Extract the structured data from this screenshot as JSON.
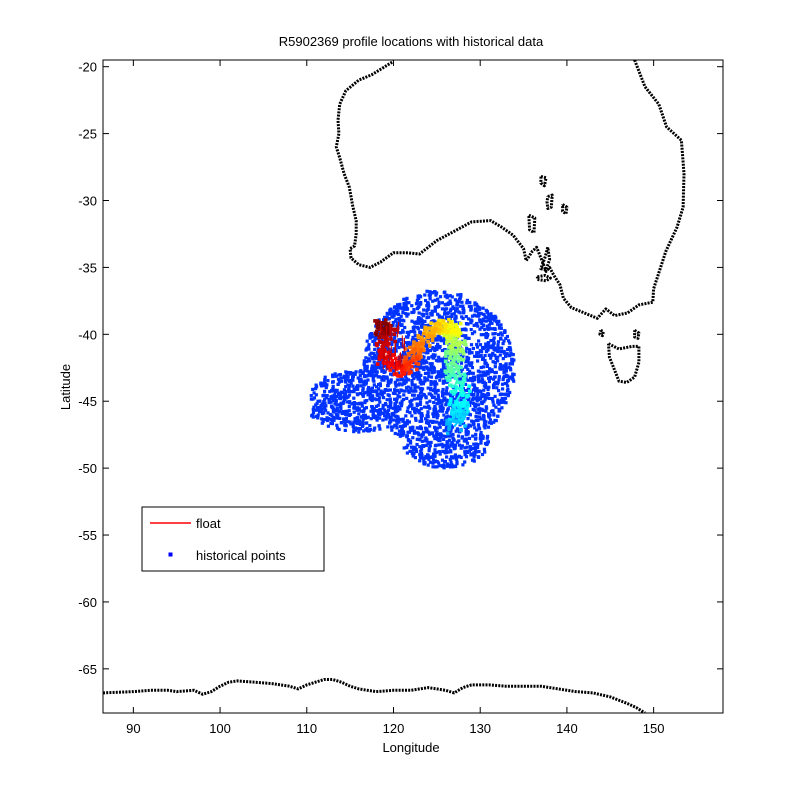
{
  "chart_data": {
    "type": "scatter",
    "title": "R5902369 profile locations with historical data",
    "xlabel": "Longitude",
    "ylabel": "Latitude",
    "xlim": [
      86.5,
      158
    ],
    "ylim": [
      -68.3,
      -19.5
    ],
    "xticks": [
      90,
      100,
      110,
      120,
      130,
      140,
      150
    ],
    "yticks": [
      -20,
      -25,
      -30,
      -35,
      -40,
      -45,
      -50,
      -55,
      -60,
      -65
    ],
    "grid": false,
    "legend_position": "lower-left",
    "legend": [
      {
        "label": "float",
        "color": "#ff0000",
        "marker": "line"
      },
      {
        "label": "historical points",
        "color": "#0000ff",
        "marker": "dot"
      }
    ],
    "series": [
      {
        "name": "historical points",
        "color": "#0033ff",
        "region": {
          "center": [
            124.5,
            -43.0
          ],
          "lon_range": [
            110.5,
            134.0
          ],
          "lat_range": [
            -50.0,
            -36.5
          ]
        }
      },
      {
        "name": "float",
        "color": "#ff0000",
        "colormap": "jet",
        "x": [
          127.0,
          127.6,
          127.2,
          127.8,
          127.3,
          127.9,
          127.1,
          127.4,
          126.9,
          126.6,
          126.9,
          127.2,
          127.5,
          127.0,
          126.8,
          126.5,
          127.0,
          126.7,
          126.3,
          125.7,
          125.1,
          124.6,
          124.1,
          123.6,
          123.0,
          122.6,
          122.3,
          122.1,
          121.9,
          121.2,
          120.4,
          119.7,
          119.1,
          118.7,
          118.9,
          119.4,
          119.0,
          118.6,
          118.9
        ],
        "y": [
          -46.9,
          -46.4,
          -45.9,
          -45.4,
          -44.9,
          -44.3,
          -43.8,
          -43.3,
          -42.8,
          -42.3,
          -41.8,
          -41.4,
          -41.0,
          -40.7,
          -40.4,
          -40.0,
          -39.7,
          -39.5,
          -39.4,
          -39.4,
          -39.5,
          -39.7,
          -40.0,
          -40.4,
          -40.8,
          -41.2,
          -41.6,
          -42.0,
          -42.3,
          -42.5,
          -42.6,
          -42.3,
          -41.8,
          -41.2,
          -40.6,
          -40.1,
          -39.7,
          -39.4,
          -39.6
        ]
      }
    ],
    "coastlines": [
      {
        "name": "australia",
        "points": [
          [
            147.8,
            -19.5
          ],
          [
            149.0,
            -21.5
          ],
          [
            150.6,
            -22.8
          ],
          [
            151.5,
            -24.5
          ],
          [
            153.2,
            -25.5
          ],
          [
            153.5,
            -28.0
          ],
          [
            153.4,
            -30.5
          ],
          [
            152.7,
            -32.0
          ],
          [
            151.4,
            -33.8
          ],
          [
            150.8,
            -35.0
          ],
          [
            150.0,
            -36.6
          ],
          [
            149.9,
            -37.6
          ],
          [
            148.3,
            -37.8
          ],
          [
            147.0,
            -38.4
          ],
          [
            145.5,
            -38.6
          ],
          [
            144.5,
            -38.1
          ],
          [
            143.5,
            -38.8
          ],
          [
            142.0,
            -38.4
          ],
          [
            140.5,
            -38.0
          ],
          [
            139.6,
            -37.3
          ],
          [
            139.2,
            -36.3
          ],
          [
            138.5,
            -35.6
          ],
          [
            138.0,
            -35.0
          ],
          [
            137.6,
            -35.3
          ],
          [
            137.2,
            -34.6
          ],
          [
            136.5,
            -33.5
          ],
          [
            136.0,
            -33.8
          ],
          [
            135.3,
            -34.5
          ],
          [
            135.0,
            -33.6
          ],
          [
            133.8,
            -32.6
          ],
          [
            132.5,
            -32.0
          ],
          [
            131.2,
            -31.5
          ],
          [
            129.0,
            -31.6
          ],
          [
            127.0,
            -32.3
          ],
          [
            125.0,
            -33.0
          ],
          [
            124.0,
            -33.5
          ],
          [
            123.0,
            -34.0
          ],
          [
            121.5,
            -33.9
          ],
          [
            120.0,
            -33.9
          ],
          [
            118.5,
            -34.6
          ],
          [
            117.3,
            -35.0
          ],
          [
            116.0,
            -34.8
          ],
          [
            115.1,
            -34.3
          ],
          [
            115.0,
            -33.6
          ],
          [
            115.5,
            -33.4
          ],
          [
            115.7,
            -32.5
          ],
          [
            115.7,
            -31.5
          ],
          [
            115.3,
            -30.4
          ],
          [
            114.9,
            -29.0
          ],
          [
            114.3,
            -28.0
          ],
          [
            113.8,
            -26.8
          ],
          [
            113.4,
            -26.0
          ],
          [
            113.7,
            -25.0
          ],
          [
            113.6,
            -24.0
          ],
          [
            113.8,
            -22.8
          ],
          [
            114.5,
            -21.8
          ],
          [
            116.0,
            -21.0
          ],
          [
            117.5,
            -20.6
          ],
          [
            119.0,
            -20.0
          ],
          [
            120.0,
            -19.6
          ]
        ]
      },
      {
        "name": "tasmania",
        "points": [
          [
            144.8,
            -40.7
          ],
          [
            146.0,
            -41.1
          ],
          [
            147.5,
            -40.9
          ],
          [
            148.3,
            -40.9
          ],
          [
            148.3,
            -42.1
          ],
          [
            147.8,
            -43.2
          ],
          [
            146.9,
            -43.6
          ],
          [
            146.0,
            -43.5
          ],
          [
            145.4,
            -42.5
          ],
          [
            144.9,
            -41.7
          ],
          [
            144.8,
            -40.7
          ]
        ]
      },
      {
        "name": "kangaroo-island",
        "points": [
          [
            136.6,
            -35.7
          ],
          [
            137.5,
            -35.6
          ],
          [
            138.1,
            -35.8
          ],
          [
            137.6,
            -36.0
          ],
          [
            136.6,
            -35.9
          ],
          [
            136.6,
            -35.7
          ]
        ]
      },
      {
        "name": "yorke-peninsula",
        "points": [
          [
            137.8,
            -33.5
          ],
          [
            137.5,
            -34.2
          ],
          [
            137.0,
            -35.1
          ],
          [
            137.6,
            -35.2
          ],
          [
            138.0,
            -34.4
          ],
          [
            137.8,
            -33.5
          ]
        ]
      },
      {
        "name": "lake-torrens",
        "points": [
          [
            137.8,
            -29.7
          ],
          [
            138.3,
            -29.6
          ],
          [
            138.2,
            -30.5
          ],
          [
            137.8,
            -30.6
          ],
          [
            137.7,
            -30.1
          ],
          [
            137.8,
            -29.7
          ]
        ]
      },
      {
        "name": "lake-gairdner",
        "points": [
          [
            135.6,
            -31.1
          ],
          [
            136.3,
            -31.3
          ],
          [
            136.2,
            -32.4
          ],
          [
            135.7,
            -32.2
          ],
          [
            135.6,
            -31.1
          ]
        ]
      },
      {
        "name": "lake-eyre-south",
        "points": [
          [
            137.0,
            -28.2
          ],
          [
            137.6,
            -28.3
          ],
          [
            137.4,
            -28.9
          ],
          [
            137.0,
            -28.7
          ],
          [
            137.0,
            -28.2
          ]
        ]
      },
      {
        "name": "lake-frome",
        "points": [
          [
            139.5,
            -30.3
          ],
          [
            140.0,
            -30.5
          ],
          [
            139.9,
            -31.0
          ],
          [
            139.5,
            -30.8
          ],
          [
            139.5,
            -30.3
          ]
        ]
      },
      {
        "name": "king-island",
        "points": [
          [
            143.9,
            -39.7
          ],
          [
            144.2,
            -39.8
          ],
          [
            144.1,
            -40.1
          ],
          [
            143.8,
            -40.0
          ],
          [
            143.9,
            -39.7
          ]
        ]
      },
      {
        "name": "flinders-island",
        "points": [
          [
            147.8,
            -39.7
          ],
          [
            148.3,
            -39.9
          ],
          [
            148.2,
            -40.3
          ],
          [
            147.8,
            -40.2
          ],
          [
            147.8,
            -39.7
          ]
        ]
      },
      {
        "name": "antarctica",
        "points": [
          [
            86.5,
            -66.8
          ],
          [
            90.0,
            -66.7
          ],
          [
            92.0,
            -66.6
          ],
          [
            94.0,
            -66.6
          ],
          [
            95.0,
            -66.7
          ],
          [
            97.0,
            -66.6
          ],
          [
            98.0,
            -66.9
          ],
          [
            99.0,
            -66.7
          ],
          [
            100.0,
            -66.3
          ],
          [
            101.0,
            -66.0
          ],
          [
            102.0,
            -65.9
          ],
          [
            104.0,
            -66.0
          ],
          [
            106.0,
            -66.1
          ],
          [
            108.0,
            -66.3
          ],
          [
            109.0,
            -66.5
          ],
          [
            110.0,
            -66.2
          ],
          [
            111.0,
            -66.0
          ],
          [
            112.0,
            -65.8
          ],
          [
            113.0,
            -65.8
          ],
          [
            114.0,
            -66.0
          ],
          [
            115.0,
            -66.3
          ],
          [
            116.0,
            -66.5
          ],
          [
            117.0,
            -66.6
          ],
          [
            118.0,
            -66.7
          ],
          [
            120.0,
            -66.6
          ],
          [
            122.0,
            -66.6
          ],
          [
            124.0,
            -66.4
          ],
          [
            125.0,
            -66.5
          ],
          [
            126.0,
            -66.6
          ],
          [
            127.0,
            -66.8
          ],
          [
            128.0,
            -66.4
          ],
          [
            129.0,
            -66.2
          ],
          [
            131.0,
            -66.2
          ],
          [
            133.0,
            -66.3
          ],
          [
            135.0,
            -66.3
          ],
          [
            137.0,
            -66.3
          ],
          [
            139.0,
            -66.5
          ],
          [
            141.0,
            -66.7
          ],
          [
            143.0,
            -66.8
          ],
          [
            145.0,
            -67.1
          ],
          [
            147.0,
            -67.6
          ],
          [
            148.0,
            -67.9
          ],
          [
            149.0,
            -68.3
          ]
        ]
      }
    ]
  }
}
